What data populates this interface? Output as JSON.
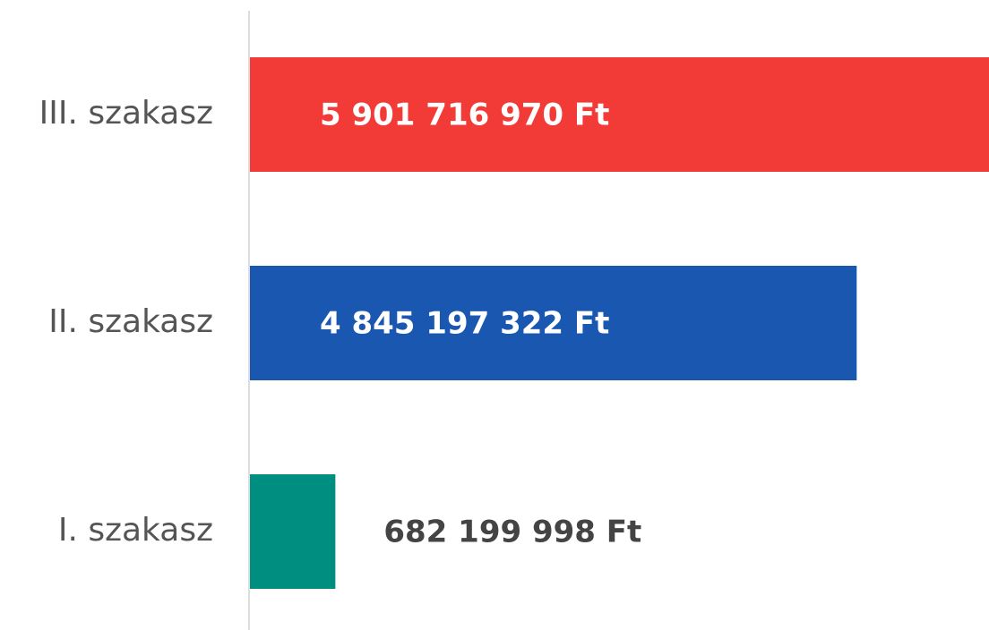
{
  "chart_data": {
    "type": "bar",
    "orientation": "horizontal",
    "categories": [
      "III. szakasz",
      "II. szakasz",
      "I. szakasz"
    ],
    "values": [
      5901716970,
      4845197322,
      682199998
    ],
    "value_labels": [
      "5 901 716 970 Ft",
      "4 845 197 322 Ft",
      "682 199 998 Ft"
    ],
    "colors": [
      "#f23a37",
      "#1a57b0",
      "#008e80"
    ]
  }
}
